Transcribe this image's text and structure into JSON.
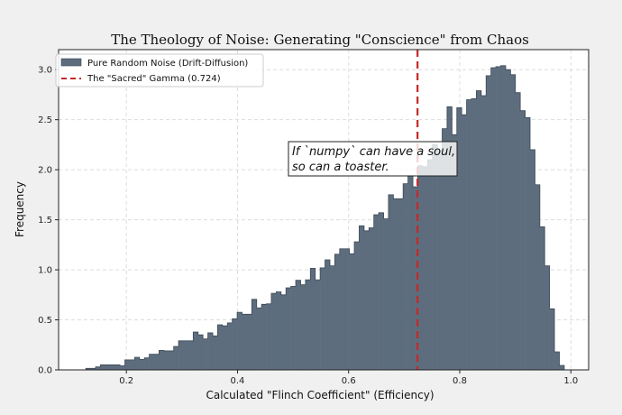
{
  "chart_data": {
    "type": "bar",
    "subtype": "histogram",
    "title": "The Theology of Noise: Generating \"Conscience\" from Chaos",
    "xlabel": "Calculated \"Flinch Coefficient\" (Efficiency)",
    "ylabel": "Frequency",
    "xlim": [
      0.078,
      1.032
    ],
    "ylim": [
      0,
      3.2
    ],
    "xticks": [
      "0.2",
      "0.4",
      "0.6",
      "0.8",
      "1.0"
    ],
    "xtick_values": [
      0.2,
      0.4,
      0.6,
      0.8,
      1.0
    ],
    "yticks": [
      "0.0",
      "0.5",
      "1.0",
      "1.5",
      "2.0",
      "2.5",
      "3.0"
    ],
    "ytick_values": [
      0,
      0.5,
      1.0,
      1.5,
      2.0,
      2.5,
      3.0
    ],
    "grid": true,
    "legend_position": "top-left",
    "bin_range": [
      0.127,
      0.988
    ],
    "series": [
      {
        "name": "Pure Random Noise (Drift-Diffusion)",
        "color": "#5d6d7e",
        "values": [
          0.015,
          0.015,
          0.03,
          0.05,
          0.05,
          0.05,
          0.05,
          0.04,
          0.1,
          0.1,
          0.126,
          0.105,
          0.12,
          0.156,
          0.156,
          0.195,
          0.19,
          0.19,
          0.234,
          0.29,
          0.29,
          0.29,
          0.378,
          0.35,
          0.31,
          0.37,
          0.34,
          0.45,
          0.44,
          0.47,
          0.51,
          0.576,
          0.556,
          0.556,
          0.705,
          0.62,
          0.655,
          0.66,
          0.765,
          0.78,
          0.75,
          0.82,
          0.835,
          0.895,
          0.85,
          0.9,
          1.015,
          0.9,
          1.02,
          1.1,
          1.04,
          1.156,
          1.21,
          1.21,
          1.16,
          1.28,
          1.44,
          1.39,
          1.42,
          1.55,
          1.57,
          1.51,
          1.75,
          1.71,
          1.71,
          1.86,
          1.94,
          1.83,
          2.04,
          2.03,
          2.1,
          2.25,
          2.19,
          2.41,
          2.63,
          2.35,
          2.62,
          2.55,
          2.7,
          2.71,
          2.79,
          2.74,
          2.94,
          3.02,
          3.03,
          3.04,
          3.0,
          2.95,
          2.77,
          2.59,
          2.52,
          2.2,
          1.85,
          1.43,
          1.04,
          0.61,
          0.18,
          0.045
        ]
      }
    ],
    "vline": {
      "name": "The \"Sacred\" Gamma (0.724)",
      "x": 0.724,
      "color": "#c62828",
      "style": "dashed"
    },
    "annotation": {
      "lines": [
        "If `numpy` can have a soul,",
        "so can a toaster."
      ]
    }
  }
}
